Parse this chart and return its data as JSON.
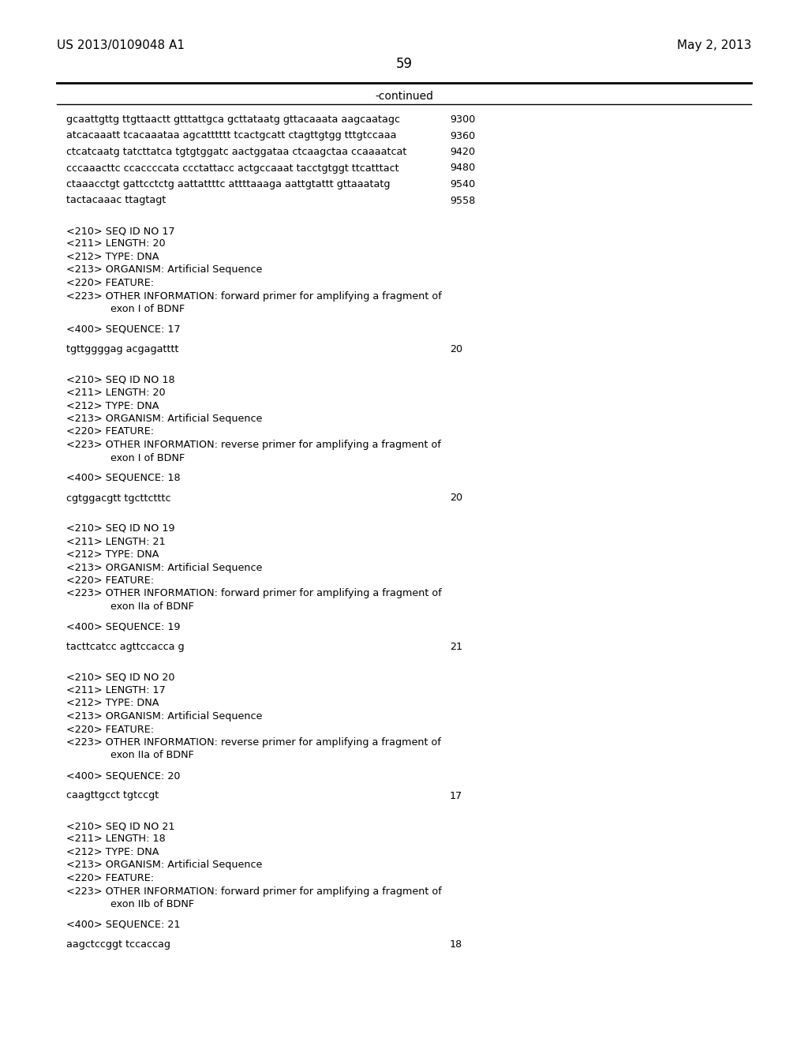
{
  "background_color": "#ffffff",
  "header_left": "US 2013/0109048 A1",
  "header_right": "May 2, 2013",
  "page_number": "59",
  "continued_label": "-continued",
  "mono_font": "Courier New",
  "serif_font": "Times New Roman",
  "content": [
    {
      "type": "seq",
      "text": "gcaattgttg ttgttaactt gtttattgca gcttataatg gttacaaata aagcaatagc",
      "num": "9300"
    },
    {
      "type": "seq",
      "text": "atcacaaatt tcacaaataa agcatttttt tcactgcatt ctagttgtgg tttgtccaaa",
      "num": "9360"
    },
    {
      "type": "seq",
      "text": "ctcatcaatg tatcttatca tgtgtggatc aactggataa ctcaagctaa ccaaaatcat",
      "num": "9420"
    },
    {
      "type": "seq",
      "text": "cccaaacttc ccaccccata ccctattacc actgccaaat tacctgtggt ttcatttact",
      "num": "9480"
    },
    {
      "type": "seq",
      "text": "ctaaacctgt gattcctctg aattattttc attttaaaga aattgtattt gttaaatatg",
      "num": "9540"
    },
    {
      "type": "seq",
      "text": "tactacaaac ttagtagt",
      "num": "9558"
    },
    {
      "type": "blank"
    },
    {
      "type": "blank"
    },
    {
      "type": "meta",
      "text": "<210> SEQ ID NO 17"
    },
    {
      "type": "meta",
      "text": "<211> LENGTH: 20"
    },
    {
      "type": "meta",
      "text": "<212> TYPE: DNA"
    },
    {
      "type": "meta",
      "text": "<213> ORGANISM: Artificial Sequence"
    },
    {
      "type": "meta",
      "text": "<220> FEATURE:"
    },
    {
      "type": "meta",
      "text": "<223> OTHER INFORMATION: forward primer for amplifying a fragment of"
    },
    {
      "type": "indent",
      "text": "exon I of BDNF"
    },
    {
      "type": "blank"
    },
    {
      "type": "meta",
      "text": "<400> SEQUENCE: 17"
    },
    {
      "type": "blank"
    },
    {
      "type": "seq",
      "text": "tgttggggag acgagatttt",
      "num": "20"
    },
    {
      "type": "blank"
    },
    {
      "type": "blank"
    },
    {
      "type": "meta",
      "text": "<210> SEQ ID NO 18"
    },
    {
      "type": "meta",
      "text": "<211> LENGTH: 20"
    },
    {
      "type": "meta",
      "text": "<212> TYPE: DNA"
    },
    {
      "type": "meta",
      "text": "<213> ORGANISM: Artificial Sequence"
    },
    {
      "type": "meta",
      "text": "<220> FEATURE:"
    },
    {
      "type": "meta",
      "text": "<223> OTHER INFORMATION: reverse primer for amplifying a fragment of"
    },
    {
      "type": "indent",
      "text": "exon I of BDNF"
    },
    {
      "type": "blank"
    },
    {
      "type": "meta",
      "text": "<400> SEQUENCE: 18"
    },
    {
      "type": "blank"
    },
    {
      "type": "seq",
      "text": "cgtggacgtt tgcttctttc",
      "num": "20"
    },
    {
      "type": "blank"
    },
    {
      "type": "blank"
    },
    {
      "type": "meta",
      "text": "<210> SEQ ID NO 19"
    },
    {
      "type": "meta",
      "text": "<211> LENGTH: 21"
    },
    {
      "type": "meta",
      "text": "<212> TYPE: DNA"
    },
    {
      "type": "meta",
      "text": "<213> ORGANISM: Artificial Sequence"
    },
    {
      "type": "meta",
      "text": "<220> FEATURE:"
    },
    {
      "type": "meta",
      "text": "<223> OTHER INFORMATION: forward primer for amplifying a fragment of"
    },
    {
      "type": "indent",
      "text": "exon IIa of BDNF"
    },
    {
      "type": "blank"
    },
    {
      "type": "meta",
      "text": "<400> SEQUENCE: 19"
    },
    {
      "type": "blank"
    },
    {
      "type": "seq",
      "text": "tacttcatcc agttccacca g",
      "num": "21"
    },
    {
      "type": "blank"
    },
    {
      "type": "blank"
    },
    {
      "type": "meta",
      "text": "<210> SEQ ID NO 20"
    },
    {
      "type": "meta",
      "text": "<211> LENGTH: 17"
    },
    {
      "type": "meta",
      "text": "<212> TYPE: DNA"
    },
    {
      "type": "meta",
      "text": "<213> ORGANISM: Artificial Sequence"
    },
    {
      "type": "meta",
      "text": "<220> FEATURE:"
    },
    {
      "type": "meta",
      "text": "<223> OTHER INFORMATION: reverse primer for amplifying a fragment of"
    },
    {
      "type": "indent",
      "text": "exon IIa of BDNF"
    },
    {
      "type": "blank"
    },
    {
      "type": "meta",
      "text": "<400> SEQUENCE: 20"
    },
    {
      "type": "blank"
    },
    {
      "type": "seq",
      "text": "caagttgcct tgtccgt",
      "num": "17"
    },
    {
      "type": "blank"
    },
    {
      "type": "blank"
    },
    {
      "type": "meta",
      "text": "<210> SEQ ID NO 21"
    },
    {
      "type": "meta",
      "text": "<211> LENGTH: 18"
    },
    {
      "type": "meta",
      "text": "<212> TYPE: DNA"
    },
    {
      "type": "meta",
      "text": "<213> ORGANISM: Artificial Sequence"
    },
    {
      "type": "meta",
      "text": "<220> FEATURE:"
    },
    {
      "type": "meta",
      "text": "<223> OTHER INFORMATION: forward primer for amplifying a fragment of"
    },
    {
      "type": "indent",
      "text": "exon IIb of BDNF"
    },
    {
      "type": "blank"
    },
    {
      "type": "meta",
      "text": "<400> SEQUENCE: 21"
    },
    {
      "type": "blank"
    },
    {
      "type": "seq",
      "text": "aagctccggt tccaccag",
      "num": "18"
    }
  ]
}
